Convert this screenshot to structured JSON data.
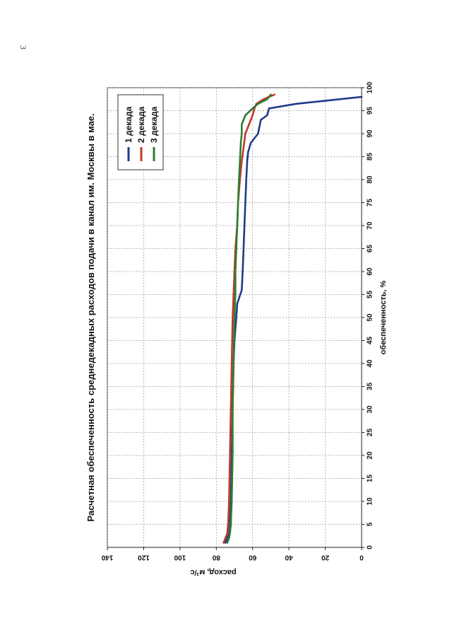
{
  "page": {
    "number": "3"
  },
  "chart_data": {
    "type": "line",
    "title": "Расчетная обеспеченность среднедекадных расходов подачи в канал им. Москвы в мае.",
    "xlabel": "обеспеченность, %",
    "ylabel": "расход, м³/с",
    "xlim": [
      0,
      100
    ],
    "ylim": [
      0,
      140
    ],
    "xticks": [
      0,
      5,
      10,
      15,
      20,
      25,
      30,
      35,
      40,
      45,
      50,
      55,
      60,
      65,
      70,
      75,
      80,
      85,
      90,
      95,
      100
    ],
    "yticks": [
      0,
      20,
      40,
      60,
      80,
      100,
      120,
      140
    ],
    "grid": true,
    "legend_position": "top-left",
    "series": [
      {
        "name": "1 декада",
        "color": "#1f3c88",
        "points": [
          [
            1,
            75
          ],
          [
            2,
            74
          ],
          [
            3,
            73
          ],
          [
            5,
            72.5
          ],
          [
            10,
            72
          ],
          [
            20,
            71.5
          ],
          [
            30,
            71
          ],
          [
            40,
            70.5
          ],
          [
            45,
            70
          ],
          [
            50,
            69
          ],
          [
            53,
            68.5
          ],
          [
            56,
            66
          ],
          [
            60,
            65.5
          ],
          [
            65,
            65
          ],
          [
            70,
            64.5
          ],
          [
            75,
            64
          ],
          [
            80,
            63.5
          ],
          [
            84,
            63
          ],
          [
            86,
            62.5
          ],
          [
            88,
            61
          ],
          [
            90,
            57
          ],
          [
            92,
            56
          ],
          [
            93,
            55.5
          ],
          [
            94,
            52
          ],
          [
            95.5,
            51
          ],
          [
            96.5,
            36
          ],
          [
            97.5,
            12
          ],
          [
            98,
            0
          ]
        ]
      },
      {
        "name": "2 декада",
        "color": "#c0392b",
        "points": [
          [
            1,
            76
          ],
          [
            2,
            75
          ],
          [
            3,
            74
          ],
          [
            5,
            73.5
          ],
          [
            10,
            73
          ],
          [
            20,
            72.5
          ],
          [
            30,
            72
          ],
          [
            40,
            71.5
          ],
          [
            50,
            71
          ],
          [
            60,
            70
          ],
          [
            65,
            69.5
          ],
          [
            70,
            68.5
          ],
          [
            75,
            68
          ],
          [
            80,
            67
          ],
          [
            84,
            66
          ],
          [
            87,
            65
          ],
          [
            90,
            64
          ],
          [
            92,
            62
          ],
          [
            94,
            60
          ],
          [
            95.5,
            59
          ],
          [
            96.5,
            58
          ],
          [
            97.5,
            54
          ],
          [
            98.5,
            48
          ]
        ]
      },
      {
        "name": "3 декада",
        "color": "#2e7d32",
        "points": [
          [
            1,
            74
          ],
          [
            2,
            73
          ],
          [
            3,
            72.5
          ],
          [
            5,
            72
          ],
          [
            10,
            71.5
          ],
          [
            20,
            71
          ],
          [
            30,
            71
          ],
          [
            40,
            70.5
          ],
          [
            50,
            70
          ],
          [
            55,
            69.5
          ],
          [
            60,
            69.5
          ],
          [
            65,
            69
          ],
          [
            70,
            68.5
          ],
          [
            75,
            68
          ],
          [
            80,
            67.5
          ],
          [
            84,
            67
          ],
          [
            88,
            66.5
          ],
          [
            90,
            66
          ],
          [
            92,
            66
          ],
          [
            94,
            64
          ],
          [
            95.5,
            60
          ],
          [
            96.5,
            57
          ],
          [
            97.5,
            52
          ],
          [
            98.5,
            50
          ]
        ]
      }
    ]
  }
}
